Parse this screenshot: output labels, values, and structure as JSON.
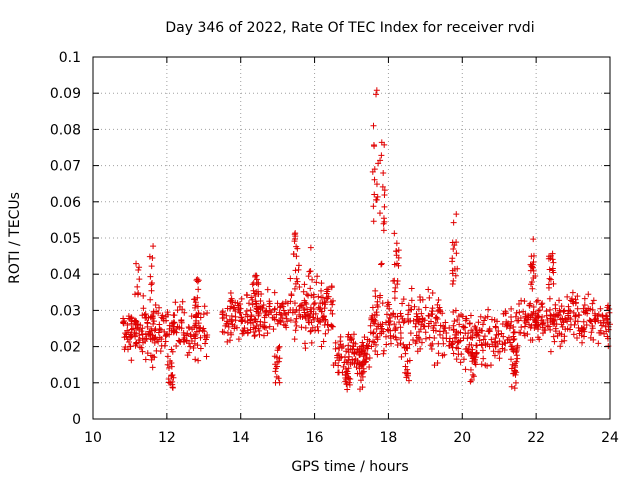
{
  "chart_data": {
    "type": "scatter",
    "title": "Day 346 of 2022, Rate Of TEC Index for receiver rvdi",
    "xlabel": "GPS time / hours",
    "ylabel": "ROTI / TECUs",
    "xlim": [
      10,
      24
    ],
    "ylim": [
      0,
      0.1
    ],
    "x_ticks": [
      "10",
      "12",
      "14",
      "16",
      "18",
      "20",
      "22",
      "24"
    ],
    "y_ticks": [
      "0",
      "0.01",
      "0.02",
      "0.03",
      "0.04",
      "0.05",
      "0.06",
      "0.07",
      "0.08",
      "0.09",
      "0.1"
    ],
    "grid": true,
    "marker": "+",
    "color": "#e00000",
    "series": [
      {
        "name": "ROTI",
        "segments": [
          {
            "x_start": 10.8,
            "x_end": 13.1,
            "base": 0.024,
            "spread": 0.007
          },
          {
            "x_start": 13.5,
            "x_end": 15.3,
            "base": 0.029,
            "spread": 0.006
          },
          {
            "x_start": 15.3,
            "x_end": 16.5,
            "base": 0.03,
            "spread": 0.008
          },
          {
            "x_start": 16.5,
            "x_end": 17.5,
            "base": 0.018,
            "spread": 0.005
          },
          {
            "x_start": 17.5,
            "x_end": 19.5,
            "base": 0.026,
            "spread": 0.008
          },
          {
            "x_start": 19.5,
            "x_end": 21.5,
            "base": 0.023,
            "spread": 0.007
          },
          {
            "x_start": 21.5,
            "x_end": 24.0,
            "base": 0.027,
            "spread": 0.006
          }
        ],
        "bursts": [
          {
            "x": 11.2,
            "y_min": 0.02,
            "y_max": 0.044
          },
          {
            "x": 11.6,
            "y_min": 0.012,
            "y_max": 0.048
          },
          {
            "x": 12.1,
            "y_min": 0.008,
            "y_max": 0.02
          },
          {
            "x": 12.8,
            "y_min": 0.025,
            "y_max": 0.039
          },
          {
            "x": 14.4,
            "y_min": 0.03,
            "y_max": 0.04
          },
          {
            "x": 15.0,
            "y_min": 0.01,
            "y_max": 0.02
          },
          {
            "x": 15.5,
            "y_min": 0.035,
            "y_max": 0.052
          },
          {
            "x": 15.9,
            "y_min": 0.02,
            "y_max": 0.049
          },
          {
            "x": 16.9,
            "y_min": 0.008,
            "y_max": 0.015
          },
          {
            "x": 17.3,
            "y_min": 0.008,
            "y_max": 0.02
          },
          {
            "x": 17.65,
            "y_min": 0.05,
            "y_max": 0.091
          },
          {
            "x": 17.85,
            "y_min": 0.04,
            "y_max": 0.077
          },
          {
            "x": 18.2,
            "y_min": 0.035,
            "y_max": 0.052
          },
          {
            "x": 18.5,
            "y_min": 0.01,
            "y_max": 0.02
          },
          {
            "x": 19.8,
            "y_min": 0.035,
            "y_max": 0.058
          },
          {
            "x": 20.3,
            "y_min": 0.01,
            "y_max": 0.02
          },
          {
            "x": 21.4,
            "y_min": 0.008,
            "y_max": 0.018
          },
          {
            "x": 21.9,
            "y_min": 0.035,
            "y_max": 0.05
          },
          {
            "x": 22.4,
            "y_min": 0.035,
            "y_max": 0.046
          }
        ]
      }
    ]
  }
}
